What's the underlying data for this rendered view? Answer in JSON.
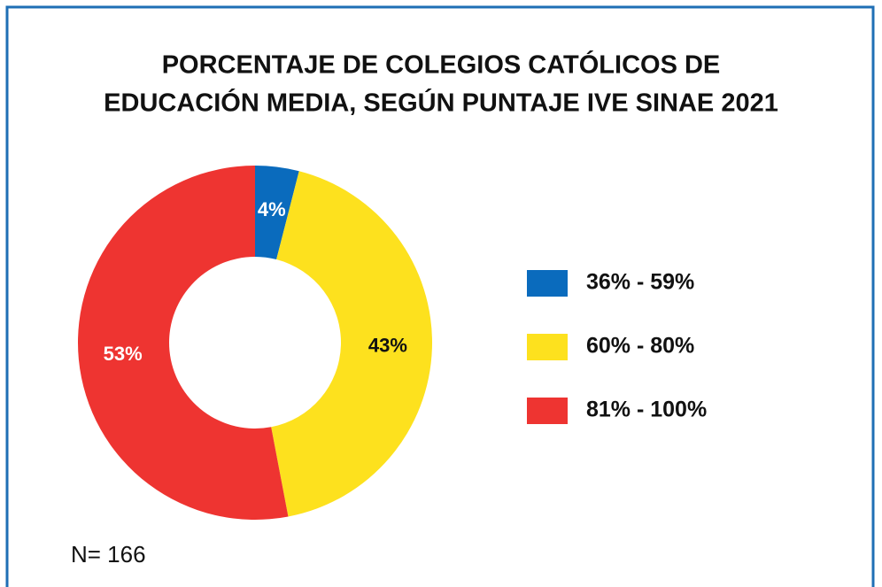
{
  "chart_data": {
    "type": "donut",
    "title": [
      "PORCENTAJE DE COLEGIOS CATÓLICOS DE",
      "EDUCACIÓN MEDIA, SEGÚN PUNTAJE IVE SINAE 2021"
    ],
    "categories": [
      "36% - 59%",
      "60% - 80%",
      "81% - 100%"
    ],
    "values": [
      4,
      43,
      53
    ],
    "value_labels": [
      "4%",
      "43%",
      "53%"
    ],
    "colors": [
      "#0a6bbd",
      "#fde11e",
      "#ee3431"
    ],
    "label_colors": [
      "#ffffff",
      "#111111",
      "#ffffff"
    ],
    "legend": "right",
    "note": "N= 166"
  }
}
